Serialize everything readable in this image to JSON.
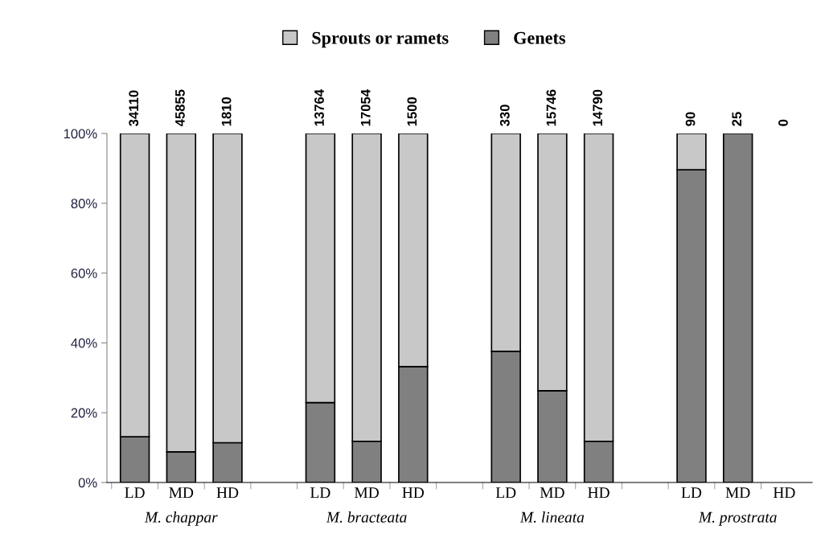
{
  "chart_data": {
    "type": "bar",
    "stacked": true,
    "categories": [
      "LD",
      "MD",
      "HD",
      null,
      "LD",
      "MD",
      "HD",
      null,
      "LD",
      "MD",
      "HD",
      null,
      "LD",
      "MD",
      "HD"
    ],
    "series": [
      {
        "name": "Genets",
        "color": "#808080",
        "values": [
          13.1,
          8.8,
          11.4,
          null,
          22.9,
          11.8,
          33.2,
          null,
          37.6,
          26.3,
          11.8,
          null,
          89.6,
          100,
          null
        ]
      },
      {
        "name": "Sprouts or ramets",
        "color": "#c8c8c8",
        "values": [
          86.9,
          91.2,
          88.6,
          null,
          77.1,
          88.2,
          66.8,
          null,
          62.4,
          73.7,
          88.2,
          null,
          10.4,
          0,
          null
        ]
      }
    ],
    "ylim": [
      0,
      100
    ],
    "yticks": [
      {
        "value": 0,
        "label": "0%"
      },
      {
        "value": 20,
        "label": "20%"
      },
      {
        "value": 40,
        "label": "40%"
      },
      {
        "value": 60,
        "label": "60%"
      },
      {
        "value": 80,
        "label": "80%"
      },
      {
        "value": 100,
        "label": "100%"
      }
    ],
    "annotations": [
      "34110",
      "45855",
      "1810",
      "13764",
      "17054",
      "1500",
      "330",
      "15746",
      "14790",
      "90",
      "25",
      "0",
      "M. chappar",
      "M. bracteata",
      "M. lineata",
      "M. prostrata"
    ],
    "legend": "top",
    "grid": false
  }
}
